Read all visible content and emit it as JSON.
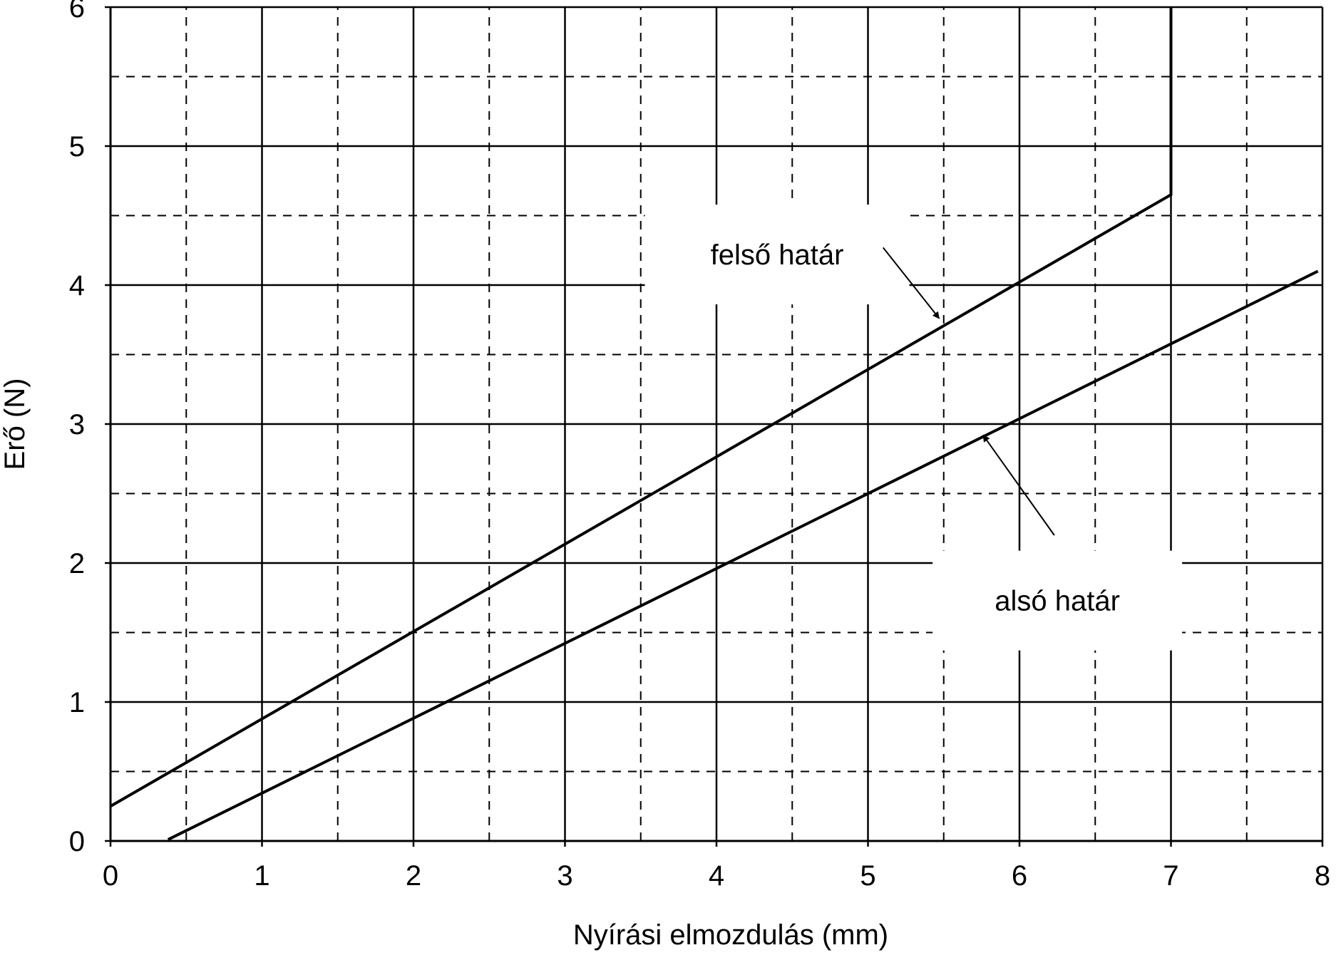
{
  "chart_data": {
    "type": "line",
    "xlabel": "Nyírási elmozdulás (mm)",
    "ylabel": "Erő (N)",
    "xlim": [
      0,
      8
    ],
    "ylim": [
      0,
      6
    ],
    "x_ticks": [
      "0",
      "1",
      "2",
      "3",
      "4",
      "5",
      "6",
      "7",
      "8"
    ],
    "y_ticks": [
      "0",
      "1",
      "2",
      "3",
      "4",
      "5",
      "6"
    ],
    "grid": {
      "major": "solid",
      "minor": "dashed",
      "minor_step": 0.5
    },
    "series": [
      {
        "name": "felső határ",
        "points": [
          [
            0,
            0.25
          ],
          [
            7,
            4.65
          ],
          [
            7,
            6
          ]
        ]
      },
      {
        "name": "alsó határ",
        "points": [
          [
            0.38,
            0.01
          ],
          [
            7.97,
            4.1
          ]
        ]
      }
    ],
    "annotations": [
      {
        "text": "felső határ",
        "at": [
          4.4,
          4.22
        ],
        "arrow_from": [
          5.1,
          4.27
        ],
        "arrow_to": [
          5.47,
          3.76
        ]
      },
      {
        "text": "alsó határ",
        "at": [
          6.25,
          1.73
        ],
        "arrow_from": [
          6.23,
          2.2
        ],
        "arrow_to": [
          5.76,
          2.92
        ]
      }
    ],
    "colors": {
      "lines": "#000000",
      "grid": "#000000",
      "background": "#ffffff"
    }
  }
}
